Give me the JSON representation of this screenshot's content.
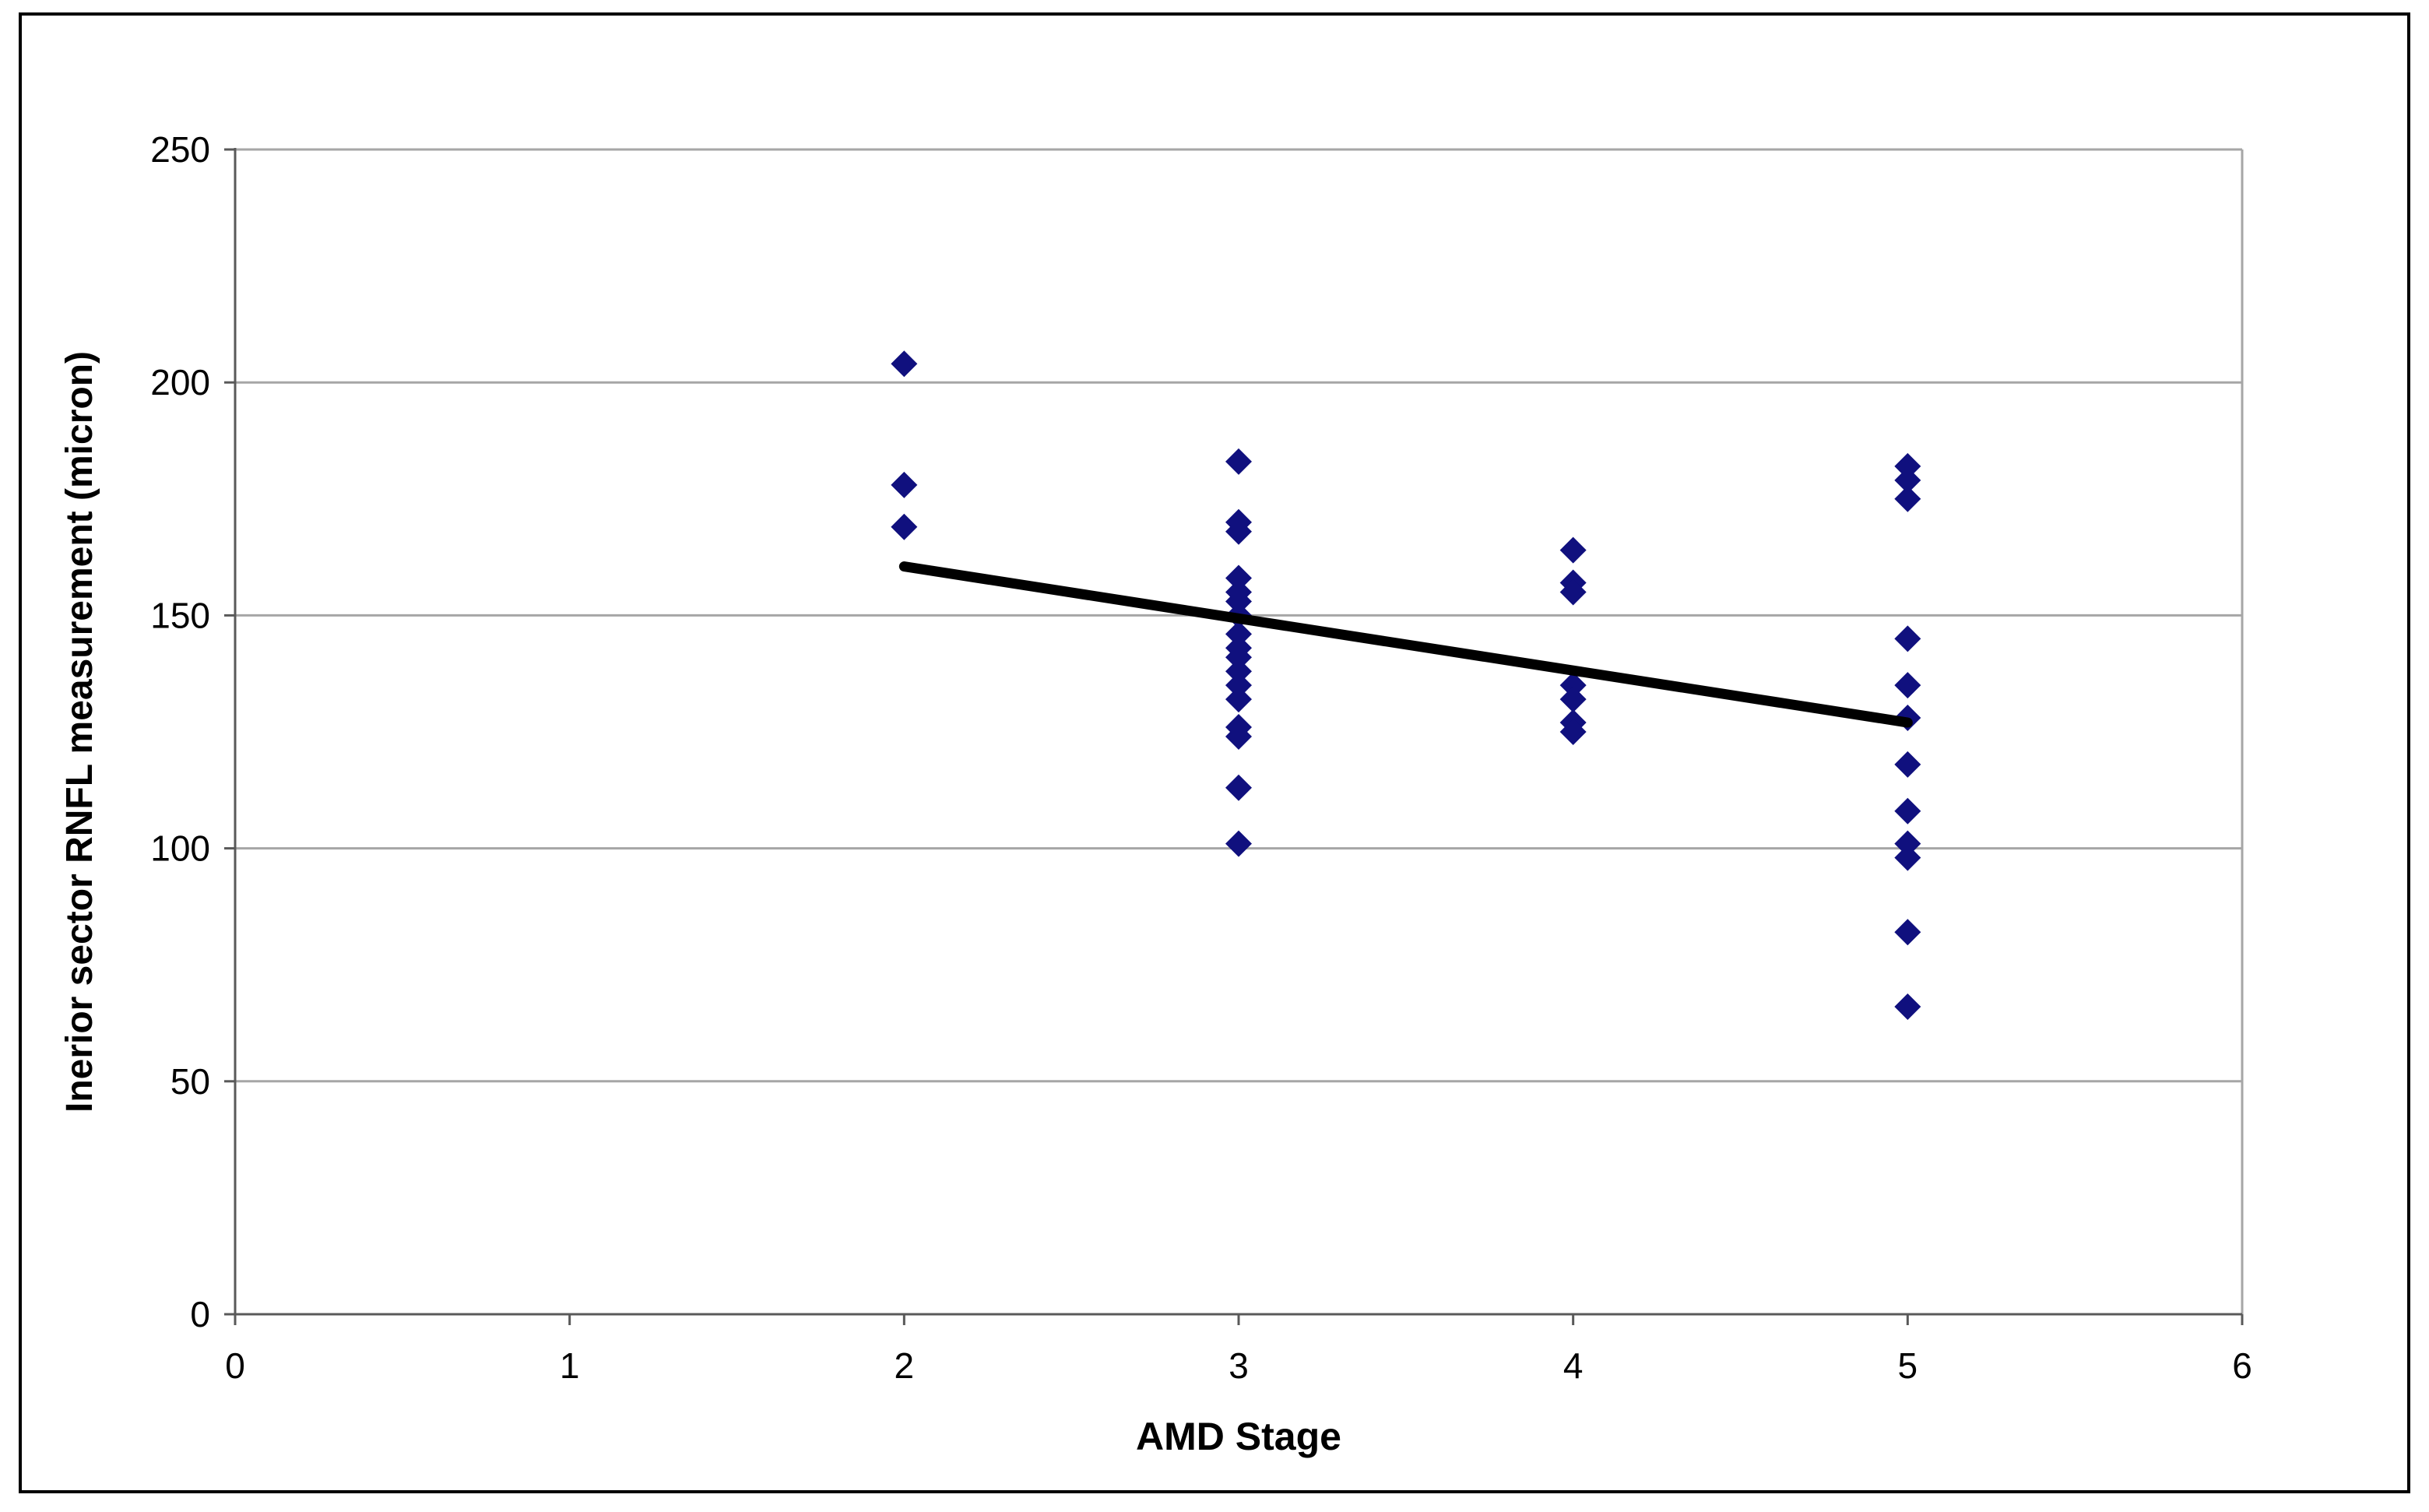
{
  "page": {
    "background": "#FFFFFF",
    "border_color": "#000000"
  },
  "chart_data": {
    "type": "scatter",
    "title": "",
    "xlabel": "AMD Stage",
    "ylabel": "Inerior sector RNFL measurement (micron)",
    "xlim": [
      0,
      6
    ],
    "ylim": [
      0,
      250
    ],
    "xticks": [
      "0",
      "1",
      "2",
      "3",
      "4",
      "5",
      "6"
    ],
    "yticks": [
      "0",
      "50",
      "100",
      "150",
      "200",
      "250"
    ],
    "grid": "horizontal-only",
    "legend": "none",
    "marker": {
      "shape": "diamond",
      "color": "#10107E",
      "size": 34
    },
    "series": [
      {
        "name": "inferior-sector-rnfl",
        "points": [
          [
            2,
            204
          ],
          [
            2,
            178
          ],
          [
            2,
            169
          ],
          [
            3,
            183
          ],
          [
            3,
            170
          ],
          [
            3,
            168
          ],
          [
            3,
            158
          ],
          [
            3,
            155
          ],
          [
            3,
            153
          ],
          [
            3,
            150
          ],
          [
            3,
            146
          ],
          [
            3,
            143
          ],
          [
            3,
            141
          ],
          [
            3,
            138
          ],
          [
            3,
            135
          ],
          [
            3,
            132
          ],
          [
            3,
            126
          ],
          [
            3,
            124
          ],
          [
            3,
            113
          ],
          [
            3,
            101
          ],
          [
            4,
            164
          ],
          [
            4,
            157
          ],
          [
            4,
            155
          ],
          [
            4,
            135
          ],
          [
            4,
            132
          ],
          [
            4,
            127
          ],
          [
            4,
            125
          ],
          [
            5,
            182
          ],
          [
            5,
            179
          ],
          [
            5,
            175
          ],
          [
            5,
            145
          ],
          [
            5,
            135
          ],
          [
            5,
            128
          ],
          [
            5,
            118
          ],
          [
            5,
            108
          ],
          [
            5,
            101
          ],
          [
            5,
            98
          ],
          [
            5,
            82
          ],
          [
            5,
            66
          ]
        ]
      }
    ],
    "trendline": {
      "x1": 2,
      "y1": 160.5,
      "x2": 5,
      "y2": 127,
      "color": "#000000",
      "width": 13
    },
    "colors": {
      "gridline": "#A6A6A6",
      "axis": "#595959",
      "plot_frame": "#A6A6A6",
      "tick_label": "#000000",
      "axis_title": "#000000"
    }
  }
}
